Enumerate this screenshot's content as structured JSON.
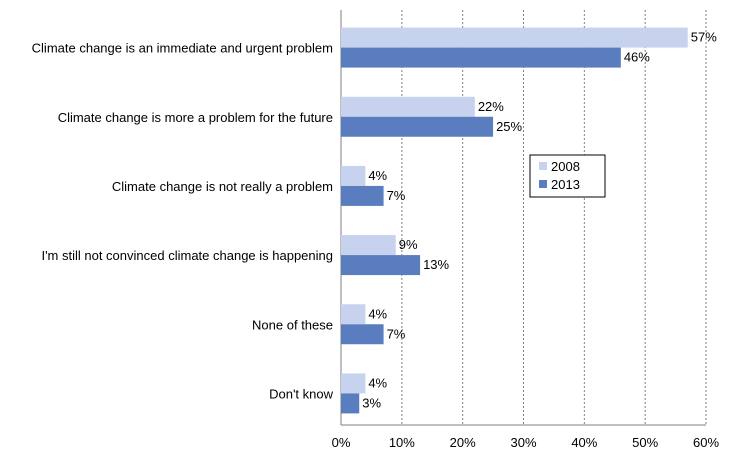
{
  "chart_data": {
    "type": "bar",
    "orientation": "horizontal",
    "categories": [
      "Climate change is an immediate and urgent problem",
      "Climate change is more a problem for the future",
      "Climate change is not really a problem",
      "I'm still not convinced climate change is happening",
      "None of these",
      "Don't know"
    ],
    "series": [
      {
        "name": "2008",
        "color": "#c7d3ee",
        "values": [
          57,
          22,
          4,
          9,
          4,
          4
        ],
        "labels": [
          "57%",
          "22%",
          "4%",
          "9%",
          "4%",
          "4%"
        ]
      },
      {
        "name": "2013",
        "color": "#5a7dbf",
        "values": [
          46,
          25,
          7,
          13,
          7,
          3
        ],
        "labels": [
          "46%",
          "25%",
          "7%",
          "13%",
          "7%",
          "3%"
        ]
      }
    ],
    "xlim": [
      0,
      60
    ],
    "xticks": [
      0,
      10,
      20,
      30,
      40,
      50,
      60
    ],
    "xtick_labels": [
      "0%",
      "10%",
      "20%",
      "30%",
      "40%",
      "50%",
      "60%"
    ],
    "gridlines": "vertical dashed",
    "legend_position": "right",
    "title": "",
    "xlabel": "",
    "ylabel": ""
  }
}
